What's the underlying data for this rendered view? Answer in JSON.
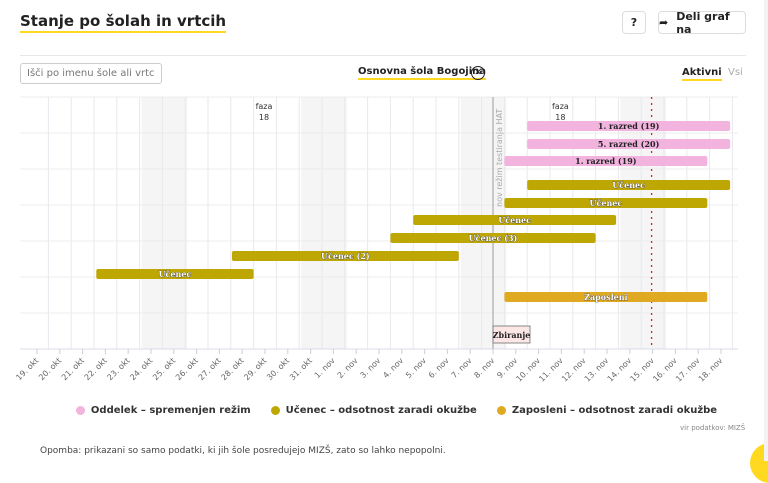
{
  "header": {
    "title": "Stanje po šolah in vrtcih",
    "help_label": "?",
    "share_label": "Deli graf na",
    "share_icon": "share-arrow-icon"
  },
  "search": {
    "placeholder": "Išči po imenu šole ali vrtca",
    "value": ""
  },
  "selected_school": {
    "label": "Osnovna šola Bogojina",
    "close_icon": "close-circle-icon"
  },
  "filters": {
    "active_label": "Aktivni",
    "all_label": "Vsi",
    "selected": "Aktivni"
  },
  "colors": {
    "pink": "#f3b3df",
    "olive": "#bfa703",
    "orange": "#e0a922",
    "accent": "#ffd920",
    "today_line": "#e02020"
  },
  "legend": [
    {
      "label": "Oddelek – spremenjen režim",
      "color": "#f3b3df"
    },
    {
      "label": "Učenec – odsotnost zaradi okužbe",
      "color": "#bfa703"
    },
    {
      "label": "Zaposleni – odsotnost zaradi okužbe",
      "color": "#e0a922"
    }
  ],
  "source": "vir podatkov: MIZŠ",
  "note": "Opomba: prikazani so samo podatki, ki jih šole posredujejo MIZŠ, zato so lahko nepopolni.",
  "chart_data": {
    "type": "timeline",
    "x_start_label": "19. okt",
    "x_ticks": [
      "19. okt",
      "20. okt",
      "21. okt",
      "22. okt",
      "23. okt",
      "24. okt",
      "25. okt",
      "26. okt",
      "27. okt",
      "28. okt",
      "29. okt",
      "30. okt",
      "31. okt",
      "1. nov",
      "2. nov",
      "3. nov",
      "4. nov",
      "5. nov",
      "6. nov",
      "7. nov",
      "8. nov",
      "9. nov",
      "10. nov",
      "11. nov",
      "12. nov",
      "13. nov",
      "14. nov",
      "15. nov",
      "16. nov",
      "17. nov",
      "18. nov"
    ],
    "weekend_bands": [
      [
        5,
        6
      ],
      [
        12,
        13
      ],
      [
        19,
        20
      ],
      [
        26,
        27
      ]
    ],
    "phase_labels": [
      {
        "text": "faza",
        "sub": "18",
        "day": 10
      },
      {
        "text": "faza",
        "sub": "18",
        "day": 23
      }
    ],
    "event_line": {
      "day": 20,
      "label": "nov režim testiranja HAT"
    },
    "today_line": {
      "day": 27
    },
    "bars": [
      {
        "label": "1. razred (19)",
        "type": "pink",
        "start": 21.5,
        "end": 30.4
      },
      {
        "label": "5. razred (20)",
        "type": "pink",
        "start": 21.5,
        "end": 30.4
      },
      {
        "label": "1. razred (19)",
        "type": "pink",
        "start": 20.5,
        "end": 29.4
      },
      {
        "label": "Učenec",
        "type": "olive",
        "start": 21.5,
        "end": 30.4
      },
      {
        "label": "Učenec",
        "type": "olive",
        "start": 20.5,
        "end": 29.4
      },
      {
        "label": "Učenec",
        "type": "olive",
        "start": 16.5,
        "end": 25.4
      },
      {
        "label": "Učenec (3)",
        "type": "olive",
        "start": 15.5,
        "end": 24.5
      },
      {
        "label": "Učenec (2)",
        "type": "olive",
        "start": 8.55,
        "end": 18.5
      },
      {
        "label": "Učenec",
        "type": "olive",
        "start": 2.6,
        "end": 9.5
      },
      {
        "label": "Zaposleni",
        "type": "orange",
        "start": 20.5,
        "end": 29.4
      }
    ],
    "marker": {
      "label": "Zbiranje",
      "day": 20
    }
  }
}
